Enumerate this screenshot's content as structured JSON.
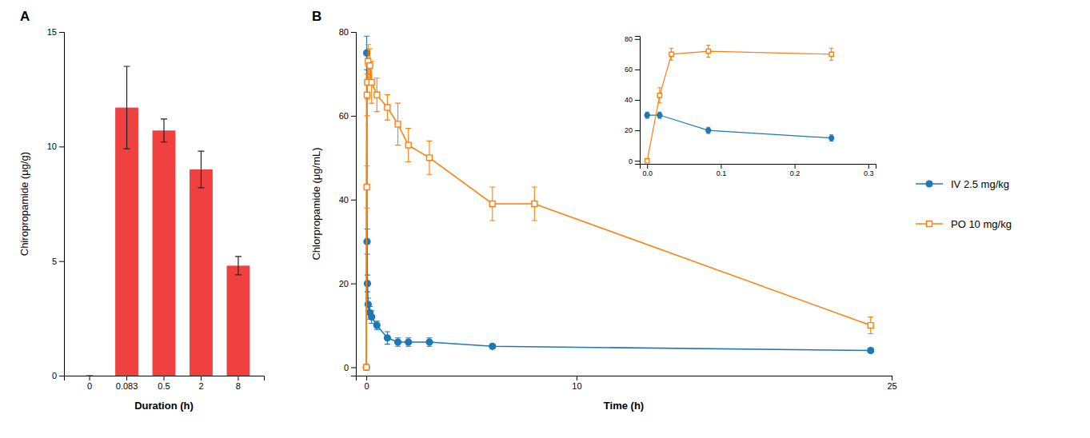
{
  "chart_data": [
    {
      "type": "bar",
      "title": "A",
      "x_label": "Duration (h)",
      "y_label": "Chiropropamide (μg/g)",
      "categories": [
        "0",
        "0.083",
        "0.5",
        "2",
        "8"
      ],
      "values": [
        0,
        11.7,
        10.7,
        9.0,
        4.8
      ],
      "errors": [
        0,
        1.8,
        0.5,
        0.8,
        0.4
      ],
      "color": "#f04040",
      "ylim": [
        0,
        15
      ],
      "yticks": [
        0,
        5,
        10,
        15
      ]
    },
    {
      "type": "line",
      "title": "B",
      "x_label": "Time (h)",
      "y_label": "Chlorpropamide (μg/mL)",
      "xlim": [
        -0.5,
        25
      ],
      "xticks": [
        0,
        10,
        25
      ],
      "ylim": [
        -2,
        80
      ],
      "yticks": [
        0,
        20,
        40,
        60,
        80
      ],
      "legend": "right",
      "series": [
        {
          "name": "IV 2.5 mg/kg",
          "marker": "circle",
          "x": [
            0.0,
            0.017,
            0.033,
            0.05,
            0.083,
            0.167,
            0.25,
            0.5,
            1.0,
            1.5,
            2.0,
            3.0,
            6.0,
            24.0
          ],
          "values": [
            0,
            75,
            30,
            20,
            15,
            13,
            12,
            10,
            7,
            6,
            6,
            6,
            5,
            4
          ],
          "errors": [
            0,
            4,
            3,
            2,
            1.5,
            1.5,
            1.5,
            1,
            1.5,
            1,
            1,
            1,
            0.5,
            0.5
          ]
        },
        {
          "name": "PO 10 mg/kg",
          "marker": "open-square",
          "x": [
            0.0,
            0.017,
            0.033,
            0.05,
            0.083,
            0.167,
            0.25,
            0.5,
            1.0,
            1.5,
            2.0,
            3.0,
            6.0,
            8.0,
            24.0
          ],
          "values": [
            0,
            43,
            65,
            68,
            73,
            72,
            68,
            65,
            62,
            58,
            53,
            50,
            39,
            39,
            10
          ],
          "errors": [
            0,
            5,
            5,
            4,
            4,
            4,
            5,
            4,
            3,
            5,
            4,
            4,
            4,
            4,
            2
          ]
        }
      ]
    },
    {
      "type": "line",
      "xlim": [
        -0.01,
        0.31
      ],
      "xticks": [
        {
          "value": 0,
          "label": "0.0"
        },
        0.1,
        0.2,
        0.3
      ],
      "ylim": [
        -2,
        82
      ],
      "yticks": [
        0,
        20,
        40,
        60,
        80
      ],
      "series": [
        {
          "marker": "circle",
          "x": [
            0.0,
            0.017,
            0.083,
            0.25
          ],
          "values": [
            30,
            30,
            20,
            15
          ],
          "errors": [
            2,
            2,
            2,
            2
          ]
        },
        {
          "marker": "open-square",
          "x": [
            0.0,
            0.017,
            0.033,
            0.083,
            0.25
          ],
          "values": [
            0,
            43,
            70,
            72,
            70
          ],
          "errors": [
            0,
            5,
            4,
            4,
            4
          ]
        }
      ]
    }
  ]
}
